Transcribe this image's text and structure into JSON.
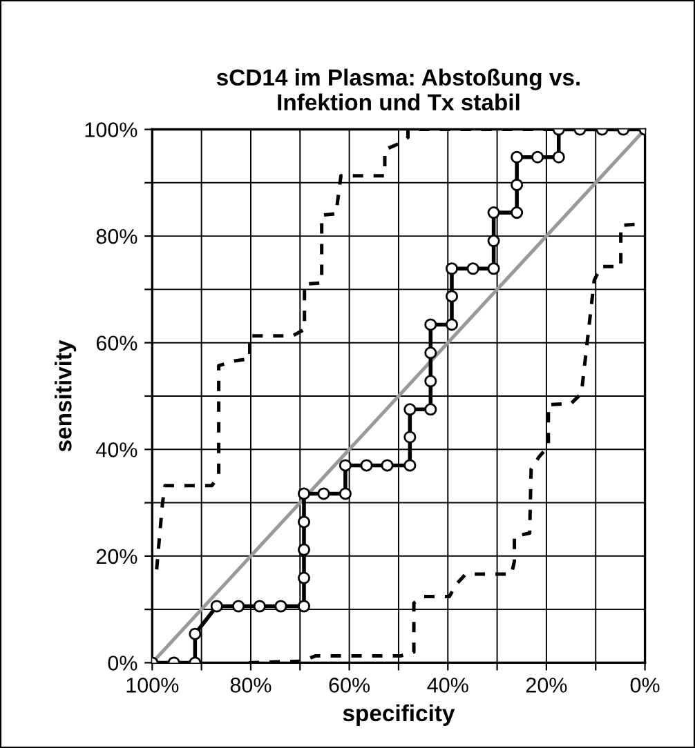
{
  "chart_data": {
    "type": "line",
    "title": "sCD14 im Plasma: Abstoßung vs.\nInfektion und Tx stabil",
    "xlabel": "specificity",
    "ylabel": "sensitivity",
    "xlim": [
      100,
      0
    ],
    "ylim": [
      0,
      100
    ],
    "xticks": [
      {
        "value": 100,
        "label": "100%"
      },
      {
        "value": 90,
        "label": null
      },
      {
        "value": 80,
        "label": "80%"
      },
      {
        "value": 70,
        "label": null
      },
      {
        "value": 60,
        "label": "60%"
      },
      {
        "value": 50,
        "label": null
      },
      {
        "value": 40,
        "label": "40%"
      },
      {
        "value": 30,
        "label": null
      },
      {
        "value": 20,
        "label": "20%"
      },
      {
        "value": 10,
        "label": null
      },
      {
        "value": 0,
        "label": "0%"
      }
    ],
    "yticks": [
      {
        "value": 0,
        "label": "0%"
      },
      {
        "value": 10,
        "label": null
      },
      {
        "value": 20,
        "label": "20%"
      },
      {
        "value": 30,
        "label": null
      },
      {
        "value": 40,
        "label": "40%"
      },
      {
        "value": 50,
        "label": null
      },
      {
        "value": 60,
        "label": "60%"
      },
      {
        "value": 70,
        "label": null
      },
      {
        "value": 80,
        "label": "80%"
      },
      {
        "value": 90,
        "label": null
      },
      {
        "value": 100,
        "label": "100%"
      }
    ],
    "grid": true,
    "legend": false,
    "series": [
      {
        "color": "#999999",
        "marker": "none",
        "line_style": "solid",
        "x": [
          100,
          0
        ],
        "values": [
          0,
          100
        ]
      },
      {
        "color": "#000000",
        "marker": "none",
        "line_style": "dashed",
        "x": [
          99.1,
          97.9,
          97.4,
          87.9,
          86.5,
          86.5,
          83.2,
          80.2,
          80.2,
          71.5,
          69.1,
          69.1,
          65.6,
          65.6,
          62.7,
          61.7,
          52.8,
          52.8,
          50.0,
          48.1,
          48.1,
          17.5
        ],
        "values": [
          17.5,
          30,
          33.2,
          33.2,
          35,
          55.7,
          56.6,
          57,
          61.3,
          61.3,
          62.5,
          71.0,
          71.2,
          83.9,
          84.2,
          91.3,
          91.3,
          96.2,
          97.3,
          98.5,
          100,
          100
        ]
      },
      {
        "color": "#000000",
        "marker": "none",
        "line_style": "dashed",
        "x": [
          80.4,
          69.5,
          66.8,
          49.5,
          46.9,
          46.9,
          44.9,
          39.7,
          38.3,
          36.4,
          27.1,
          26.5,
          26.5,
          23.4,
          23.1,
          21.5,
          19.6,
          19.6,
          15,
          12.9,
          10.3,
          8.9,
          4.9,
          4.9,
          0.5
        ],
        "values": [
          0,
          0.3,
          1.3,
          1.3,
          2,
          11.2,
          12.4,
          12.4,
          14.7,
          16.6,
          16.6,
          19,
          23.7,
          24.3,
          36.3,
          38.6,
          40.6,
          48.4,
          48.6,
          50.5,
          71.7,
          74.3,
          74.3,
          82,
          82.3
        ]
      },
      {
        "color": "#000000",
        "marker": "circle",
        "line_style": "solid",
        "x": [
          100,
          95.6,
          91.3,
          91.3,
          86.9,
          82.5,
          78.2,
          73.9,
          69.2,
          69.2,
          69.2,
          69.2,
          69.2,
          65.2,
          60.8,
          60.8,
          56.5,
          52.3,
          47.7,
          47.7,
          47.7,
          43.5,
          43.5,
          43.5,
          43.5,
          39.2,
          39.2,
          39.2,
          34.9,
          30.7,
          30.7,
          30.7,
          26.0,
          26.0,
          26.0,
          21.8,
          17.5,
          17.5,
          13.2,
          8.7,
          4.4,
          0
        ],
        "values": [
          0,
          0,
          0,
          5.4,
          10.6,
          10.6,
          10.6,
          10.6,
          10.6,
          15.9,
          21.2,
          26.4,
          31.7,
          31.7,
          31.7,
          37.0,
          37.0,
          37.0,
          37.0,
          42.3,
          47.5,
          47.5,
          52.8,
          58.1,
          63.4,
          63.4,
          68.7,
          73.9,
          73.9,
          73.9,
          79.1,
          84.4,
          84.4,
          89.6,
          94.8,
          94.8,
          94.8,
          100,
          100,
          100,
          100,
          100
        ]
      }
    ]
  }
}
